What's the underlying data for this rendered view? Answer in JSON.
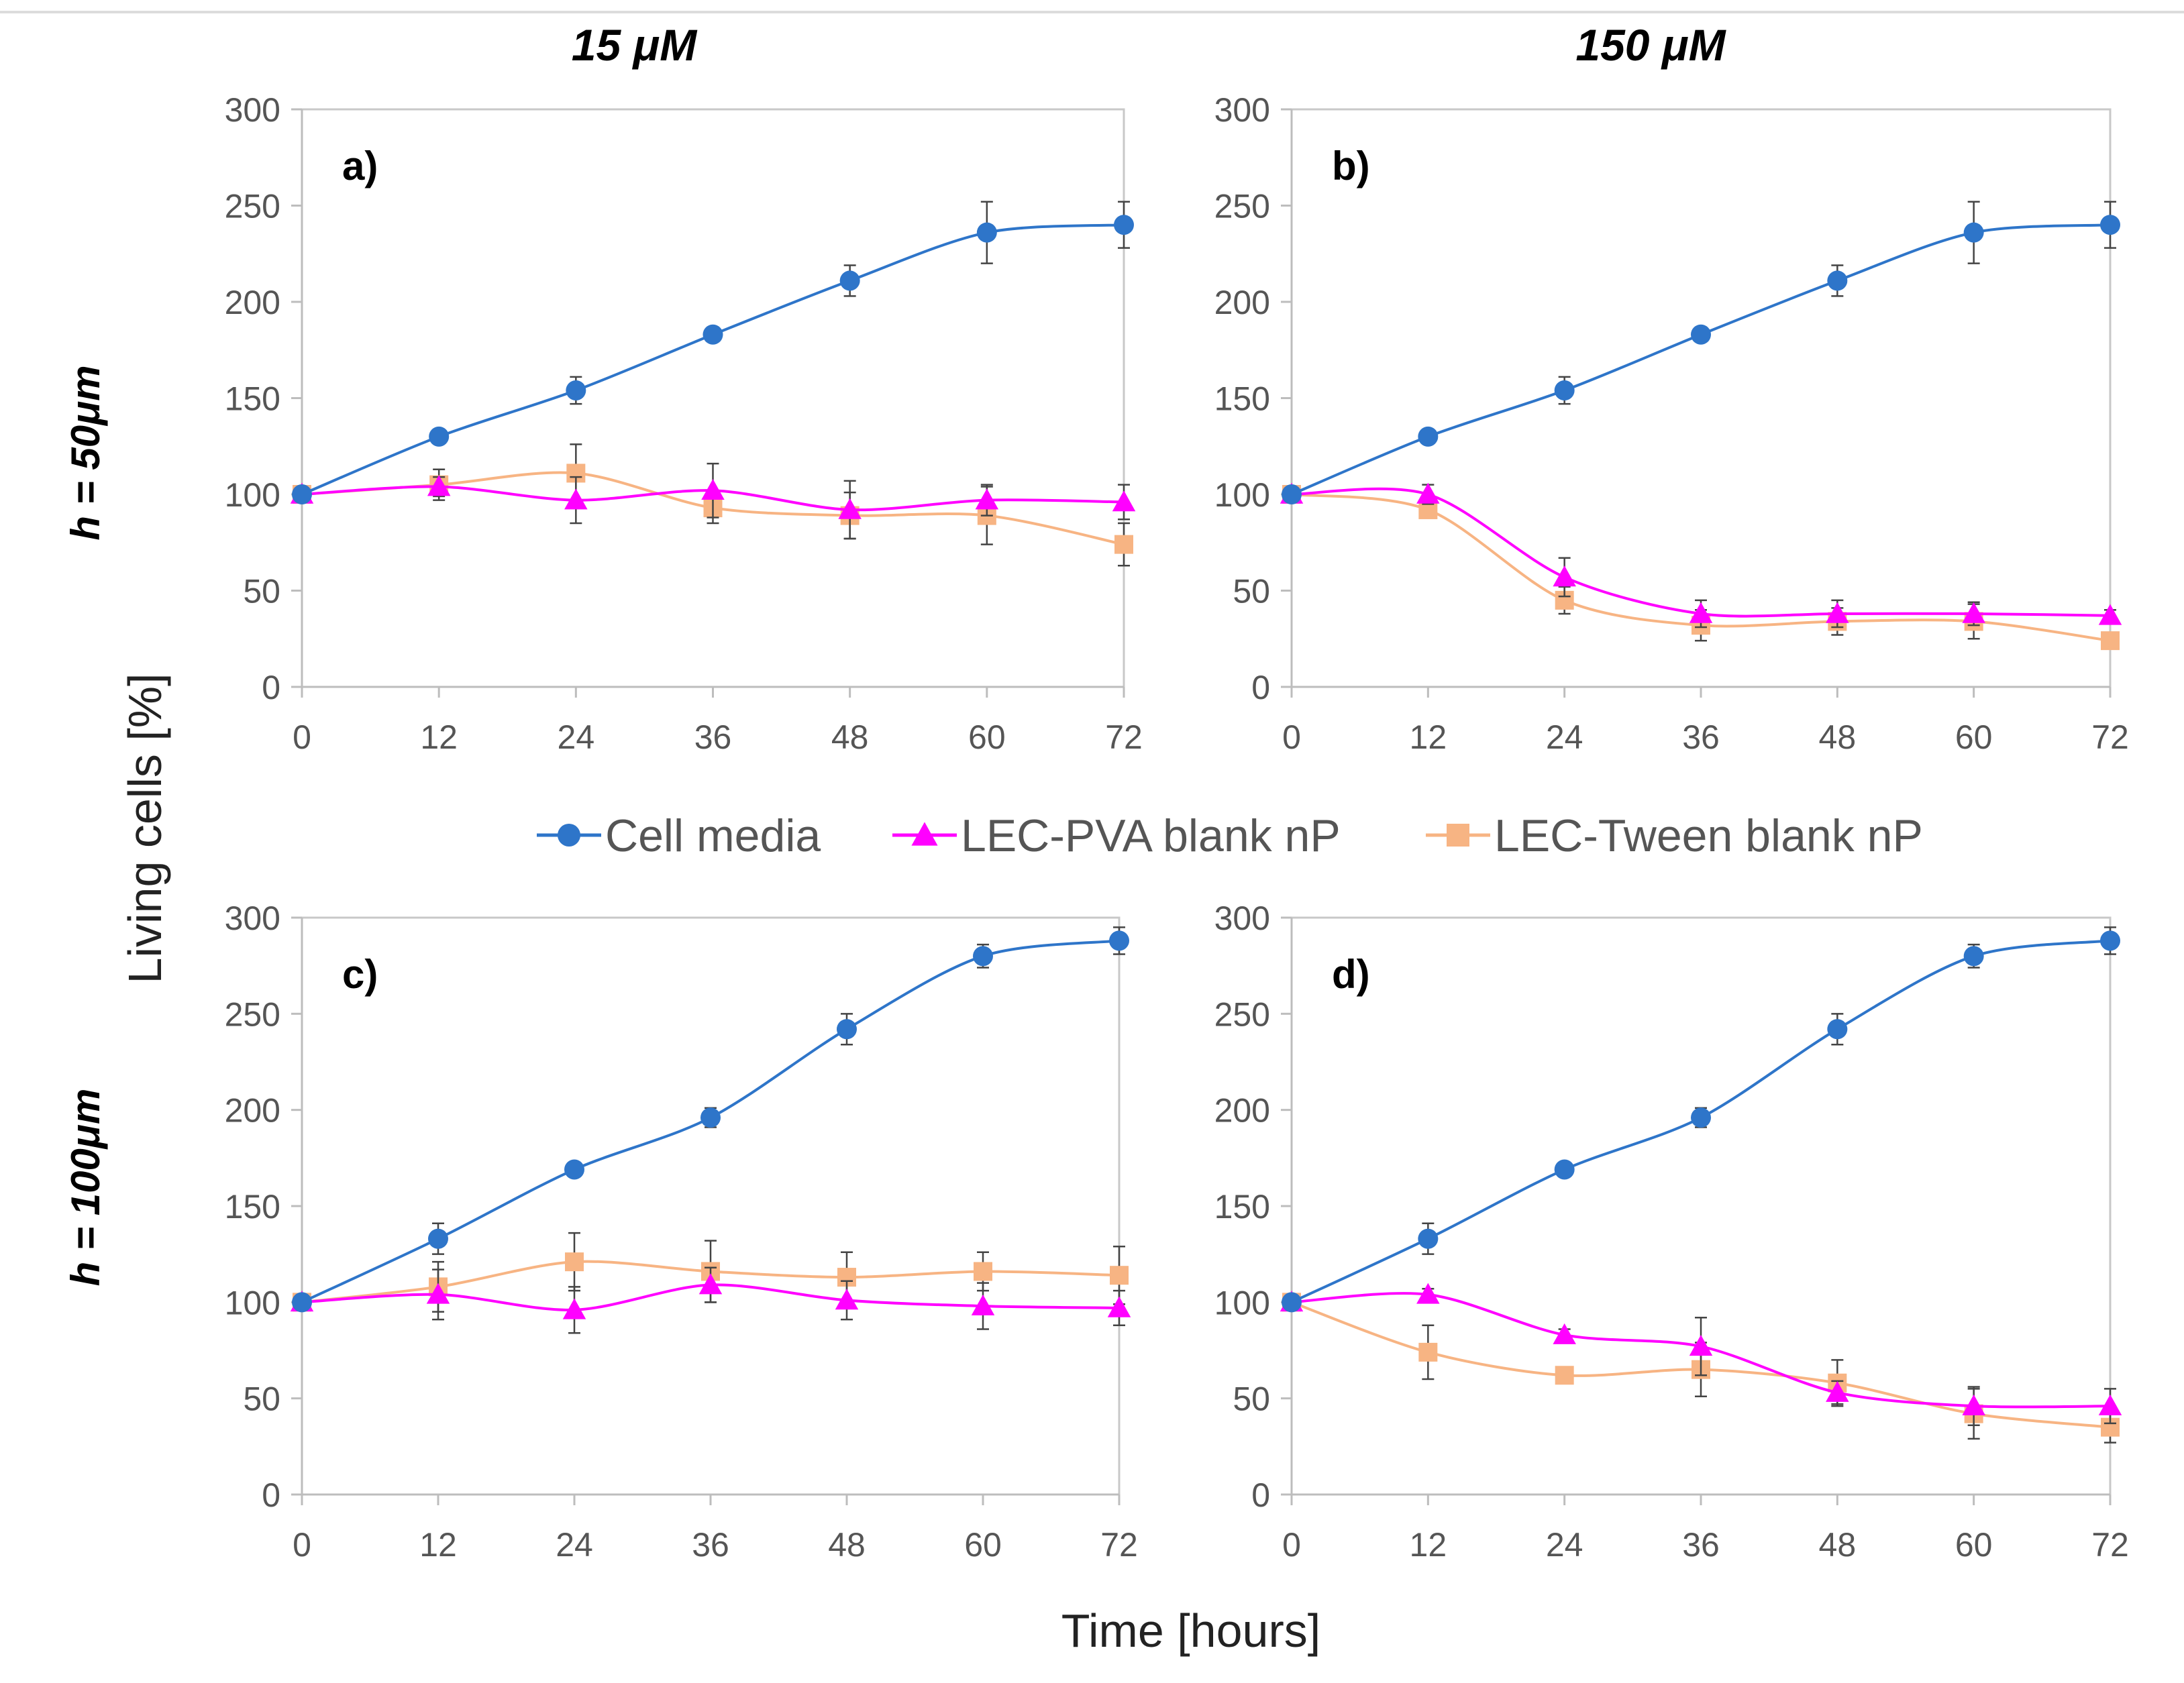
{
  "figure": {
    "col_titles": [
      "15 μM",
      "150 μM"
    ],
    "row_titles": [
      "h = 50μm",
      "h = 100μm"
    ],
    "ylabel": "Living cells [%]",
    "xlabel": "Time [hours]"
  },
  "legend": {
    "placement": "center",
    "entries": [
      {
        "label": "Cell media",
        "color": "#2e75c9",
        "marker": "circle"
      },
      {
        "label": "LEC-PVA blank nP",
        "color": "#ff00ff",
        "marker": "triangle"
      },
      {
        "label": "LEC-Tween blank nP",
        "color": "#f7b483",
        "marker": "square"
      }
    ]
  },
  "chart_data": [
    {
      "type": "line",
      "panel": "a)",
      "concentration": "15 μM",
      "height": "h = 50μm",
      "x": [
        0,
        12,
        24,
        36,
        48,
        60,
        72
      ],
      "xticks": [
        "0",
        "12",
        "24",
        "36",
        "48",
        "60",
        "72"
      ],
      "ylim": [
        0,
        300
      ],
      "yticks": [
        "0",
        "50",
        "100",
        "150",
        "200",
        "250",
        "300"
      ],
      "series": [
        {
          "name": "Cell media",
          "color": "#2e75c9",
          "marker": "circle",
          "values": [
            100,
            130,
            154,
            183,
            211,
            236,
            240
          ],
          "errors": [
            0,
            3,
            7,
            3,
            8,
            16,
            12
          ]
        },
        {
          "name": "LEC-PVA blank nP",
          "color": "#ff00ff",
          "marker": "triangle",
          "values": [
            100,
            104,
            97,
            102,
            92,
            97,
            96
          ],
          "errors": [
            0,
            5,
            12,
            14,
            15,
            8,
            9
          ]
        },
        {
          "name": "LEC-Tween blank nP",
          "color": "#f7b483",
          "marker": "square",
          "values": [
            100,
            105,
            111,
            93,
            89,
            89,
            74
          ],
          "errors": [
            0,
            8,
            15,
            8,
            12,
            15,
            11
          ]
        }
      ]
    },
    {
      "type": "line",
      "panel": "b)",
      "concentration": "150 μM",
      "height": "h = 50μm",
      "x": [
        0,
        12,
        24,
        36,
        48,
        60,
        72
      ],
      "xticks": [
        "0",
        "12",
        "24",
        "36",
        "48",
        "60",
        "72"
      ],
      "ylim": [
        0,
        300
      ],
      "yticks": [
        "0",
        "50",
        "100",
        "150",
        "200",
        "250",
        "300"
      ],
      "series": [
        {
          "name": "Cell media",
          "color": "#2e75c9",
          "marker": "circle",
          "values": [
            100,
            130,
            154,
            183,
            211,
            236,
            240
          ],
          "errors": [
            0,
            3,
            7,
            3,
            8,
            16,
            12
          ]
        },
        {
          "name": "LEC-PVA blank nP",
          "color": "#ff00ff",
          "marker": "triangle",
          "values": [
            100,
            100,
            57,
            38,
            38,
            38,
            37
          ],
          "errors": [
            0,
            5,
            10,
            7,
            7,
            6,
            3
          ]
        },
        {
          "name": "LEC-Tween blank nP",
          "color": "#f7b483",
          "marker": "square",
          "values": [
            100,
            92,
            45,
            32,
            34,
            34,
            24
          ],
          "errors": [
            0,
            4,
            7,
            8,
            7,
            9,
            3
          ]
        }
      ]
    },
    {
      "type": "line",
      "panel": "c)",
      "concentration": "15 μM",
      "height": "h = 100μm",
      "x": [
        0,
        12,
        24,
        36,
        48,
        60,
        72
      ],
      "xticks": [
        "0",
        "12",
        "24",
        "36",
        "48",
        "60",
        "72"
      ],
      "ylim": [
        0,
        300
      ],
      "yticks": [
        "0",
        "50",
        "100",
        "150",
        "200",
        "250",
        "300"
      ],
      "series": [
        {
          "name": "Cell media",
          "color": "#2e75c9",
          "marker": "circle",
          "values": [
            100,
            133,
            169,
            196,
            242,
            280,
            288
          ],
          "errors": [
            0,
            8,
            3,
            5,
            8,
            6,
            7
          ]
        },
        {
          "name": "LEC-PVA blank nP",
          "color": "#ff00ff",
          "marker": "triangle",
          "values": [
            100,
            104,
            96,
            109,
            101,
            98,
            97
          ],
          "errors": [
            0,
            13,
            12,
            9,
            10,
            12,
            9
          ]
        },
        {
          "name": "LEC-Tween blank nP",
          "color": "#f7b483",
          "marker": "square",
          "values": [
            100,
            108,
            121,
            116,
            113,
            116,
            114
          ],
          "errors": [
            0,
            13,
            15,
            16,
            13,
            10,
            15
          ]
        }
      ]
    },
    {
      "type": "line",
      "panel": "d)",
      "concentration": "150 μM",
      "height": "h = 100μm",
      "x": [
        0,
        12,
        24,
        36,
        48,
        60,
        72
      ],
      "xticks": [
        "0",
        "12",
        "24",
        "36",
        "48",
        "60",
        "72"
      ],
      "ylim": [
        0,
        300
      ],
      "yticks": [
        "0",
        "50",
        "100",
        "150",
        "200",
        "250",
        "300"
      ],
      "series": [
        {
          "name": "Cell media",
          "color": "#2e75c9",
          "marker": "circle",
          "values": [
            100,
            133,
            169,
            196,
            242,
            280,
            288
          ],
          "errors": [
            0,
            8,
            3,
            5,
            8,
            6,
            7
          ]
        },
        {
          "name": "LEC-PVA blank nP",
          "color": "#ff00ff",
          "marker": "triangle",
          "values": [
            100,
            104,
            83,
            77,
            53,
            46,
            46
          ],
          "errors": [
            0,
            3,
            3,
            15,
            6,
            10,
            9
          ]
        },
        {
          "name": "LEC-Tween blank nP",
          "color": "#f7b483",
          "marker": "square",
          "values": [
            100,
            74,
            62,
            65,
            58,
            42,
            35
          ],
          "errors": [
            0,
            14,
            3,
            14,
            12,
            13,
            8
          ]
        }
      ]
    }
  ]
}
